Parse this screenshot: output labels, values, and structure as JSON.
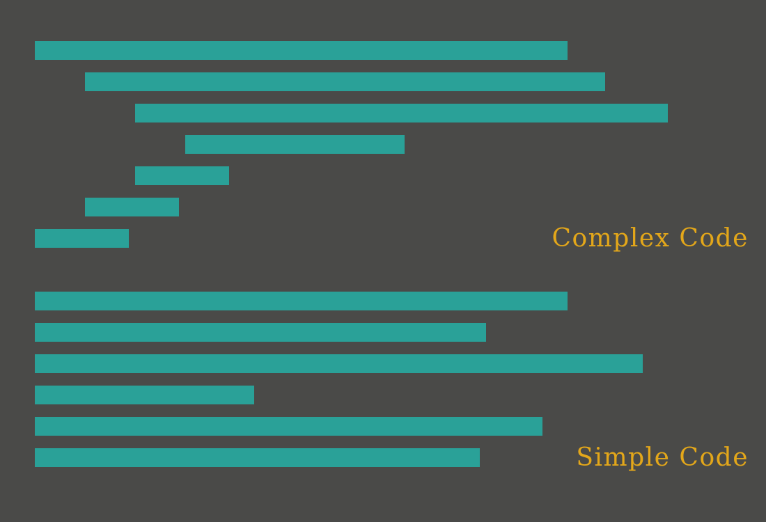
{
  "palette": {
    "background": "#4a4a48",
    "bar": "#2aa198",
    "label": "#e3a71a"
  },
  "groups": [
    {
      "id": "complex",
      "label": "Complex Code",
      "lines": [
        {
          "indent": 0,
          "length": 765
        },
        {
          "indent": 1,
          "length": 747
        },
        {
          "indent": 2,
          "length": 765
        },
        {
          "indent": 3,
          "length": 315
        },
        {
          "indent": 2,
          "length": 135
        },
        {
          "indent": 1,
          "length": 135
        },
        {
          "indent": 0,
          "length": 135
        }
      ]
    },
    {
      "id": "simple",
      "label": "Simple Code",
      "lines": [
        {
          "indent": 0,
          "length": 765
        },
        {
          "indent": 0,
          "length": 648
        },
        {
          "indent": 0,
          "length": 873
        },
        {
          "indent": 0,
          "length": 315
        },
        {
          "indent": 0,
          "length": 729
        },
        {
          "indent": 0,
          "length": 639
        }
      ]
    }
  ]
}
